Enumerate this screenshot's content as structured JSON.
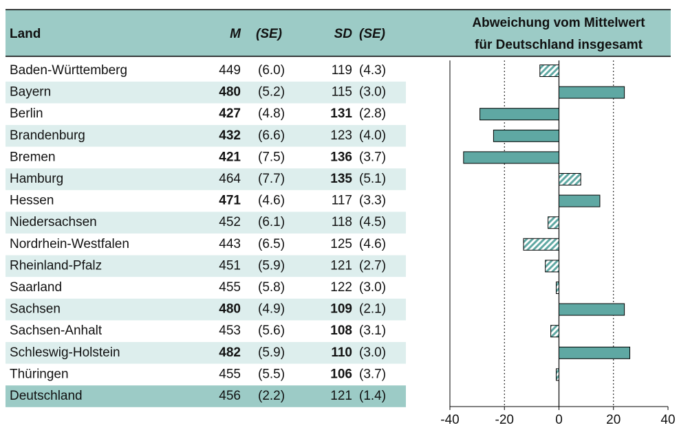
{
  "header": {
    "land": "Land",
    "m": "M",
    "m_se": "(SE)",
    "sd": "SD",
    "sd_se": "(SE)",
    "chart_title": [
      "Abweichung vom Mittelwert",
      "für Deutschland insgesamt"
    ]
  },
  "rows": [
    {
      "land": "Baden-Württemberg",
      "m": 449,
      "m_se": "(6.0)",
      "sd": 119,
      "sd_se": "(4.3)",
      "m_bold": false,
      "sd_bold": false
    },
    {
      "land": "Bayern",
      "m": 480,
      "m_se": "(5.2)",
      "sd": 115,
      "sd_se": "(3.0)",
      "m_bold": true,
      "sd_bold": false
    },
    {
      "land": "Berlin",
      "m": 427,
      "m_se": "(4.8)",
      "sd": 131,
      "sd_se": "(2.8)",
      "m_bold": true,
      "sd_bold": true
    },
    {
      "land": "Brandenburg",
      "m": 432,
      "m_se": "(6.6)",
      "sd": 123,
      "sd_se": "(4.0)",
      "m_bold": true,
      "sd_bold": false
    },
    {
      "land": "Bremen",
      "m": 421,
      "m_se": "(7.5)",
      "sd": 136,
      "sd_se": "(3.7)",
      "m_bold": true,
      "sd_bold": true
    },
    {
      "land": "Hamburg",
      "m": 464,
      "m_se": "(7.7)",
      "sd": 135,
      "sd_se": "(5.1)",
      "m_bold": false,
      "sd_bold": true
    },
    {
      "land": "Hessen",
      "m": 471,
      "m_se": "(4.6)",
      "sd": 117,
      "sd_se": "(3.3)",
      "m_bold": true,
      "sd_bold": false
    },
    {
      "land": "Niedersachsen",
      "m": 452,
      "m_se": "(6.1)",
      "sd": 118,
      "sd_se": "(4.5)",
      "m_bold": false,
      "sd_bold": false
    },
    {
      "land": "Nordrhein-Westfalen",
      "m": 443,
      "m_se": "(6.5)",
      "sd": 125,
      "sd_se": "(4.6)",
      "m_bold": false,
      "sd_bold": false
    },
    {
      "land": "Rheinland-Pfalz",
      "m": 451,
      "m_se": "(5.9)",
      "sd": 121,
      "sd_se": "(2.7)",
      "m_bold": false,
      "sd_bold": false
    },
    {
      "land": "Saarland",
      "m": 455,
      "m_se": "(5.8)",
      "sd": 122,
      "sd_se": "(3.0)",
      "m_bold": false,
      "sd_bold": false
    },
    {
      "land": "Sachsen",
      "m": 480,
      "m_se": "(4.9)",
      "sd": 109,
      "sd_se": "(2.1)",
      "m_bold": true,
      "sd_bold": true
    },
    {
      "land": "Sachsen-Anhalt",
      "m": 453,
      "m_se": "(5.6)",
      "sd": 108,
      "sd_se": "(3.1)",
      "m_bold": false,
      "sd_bold": true
    },
    {
      "land": "Schleswig-Holstein",
      "m": 482,
      "m_se": "(5.9)",
      "sd": 110,
      "sd_se": "(3.0)",
      "m_bold": true,
      "sd_bold": true
    },
    {
      "land": "Thüringen",
      "m": 455,
      "m_se": "(5.5)",
      "sd": 106,
      "sd_se": "(3.7)",
      "m_bold": false,
      "sd_bold": true
    },
    {
      "land": "Deutschland",
      "m": 456,
      "m_se": "(2.2)",
      "sd": 121,
      "sd_se": "(1.4)",
      "m_bold": false,
      "sd_bold": false
    }
  ],
  "chart_data": {
    "type": "bar",
    "orientation": "horizontal",
    "values": [
      -7,
      24,
      -29,
      -24,
      -35,
      8,
      15,
      -4,
      -13,
      -5,
      -1,
      24,
      -3,
      26,
      -1,
      null
    ],
    "significant": [
      false,
      true,
      true,
      true,
      true,
      false,
      true,
      false,
      false,
      false,
      false,
      true,
      false,
      true,
      false,
      false
    ],
    "color": "#5fa8a3",
    "xlim": [
      -40,
      40
    ],
    "xticks": [
      -40,
      -20,
      0,
      20,
      40
    ],
    "grid": true
  }
}
